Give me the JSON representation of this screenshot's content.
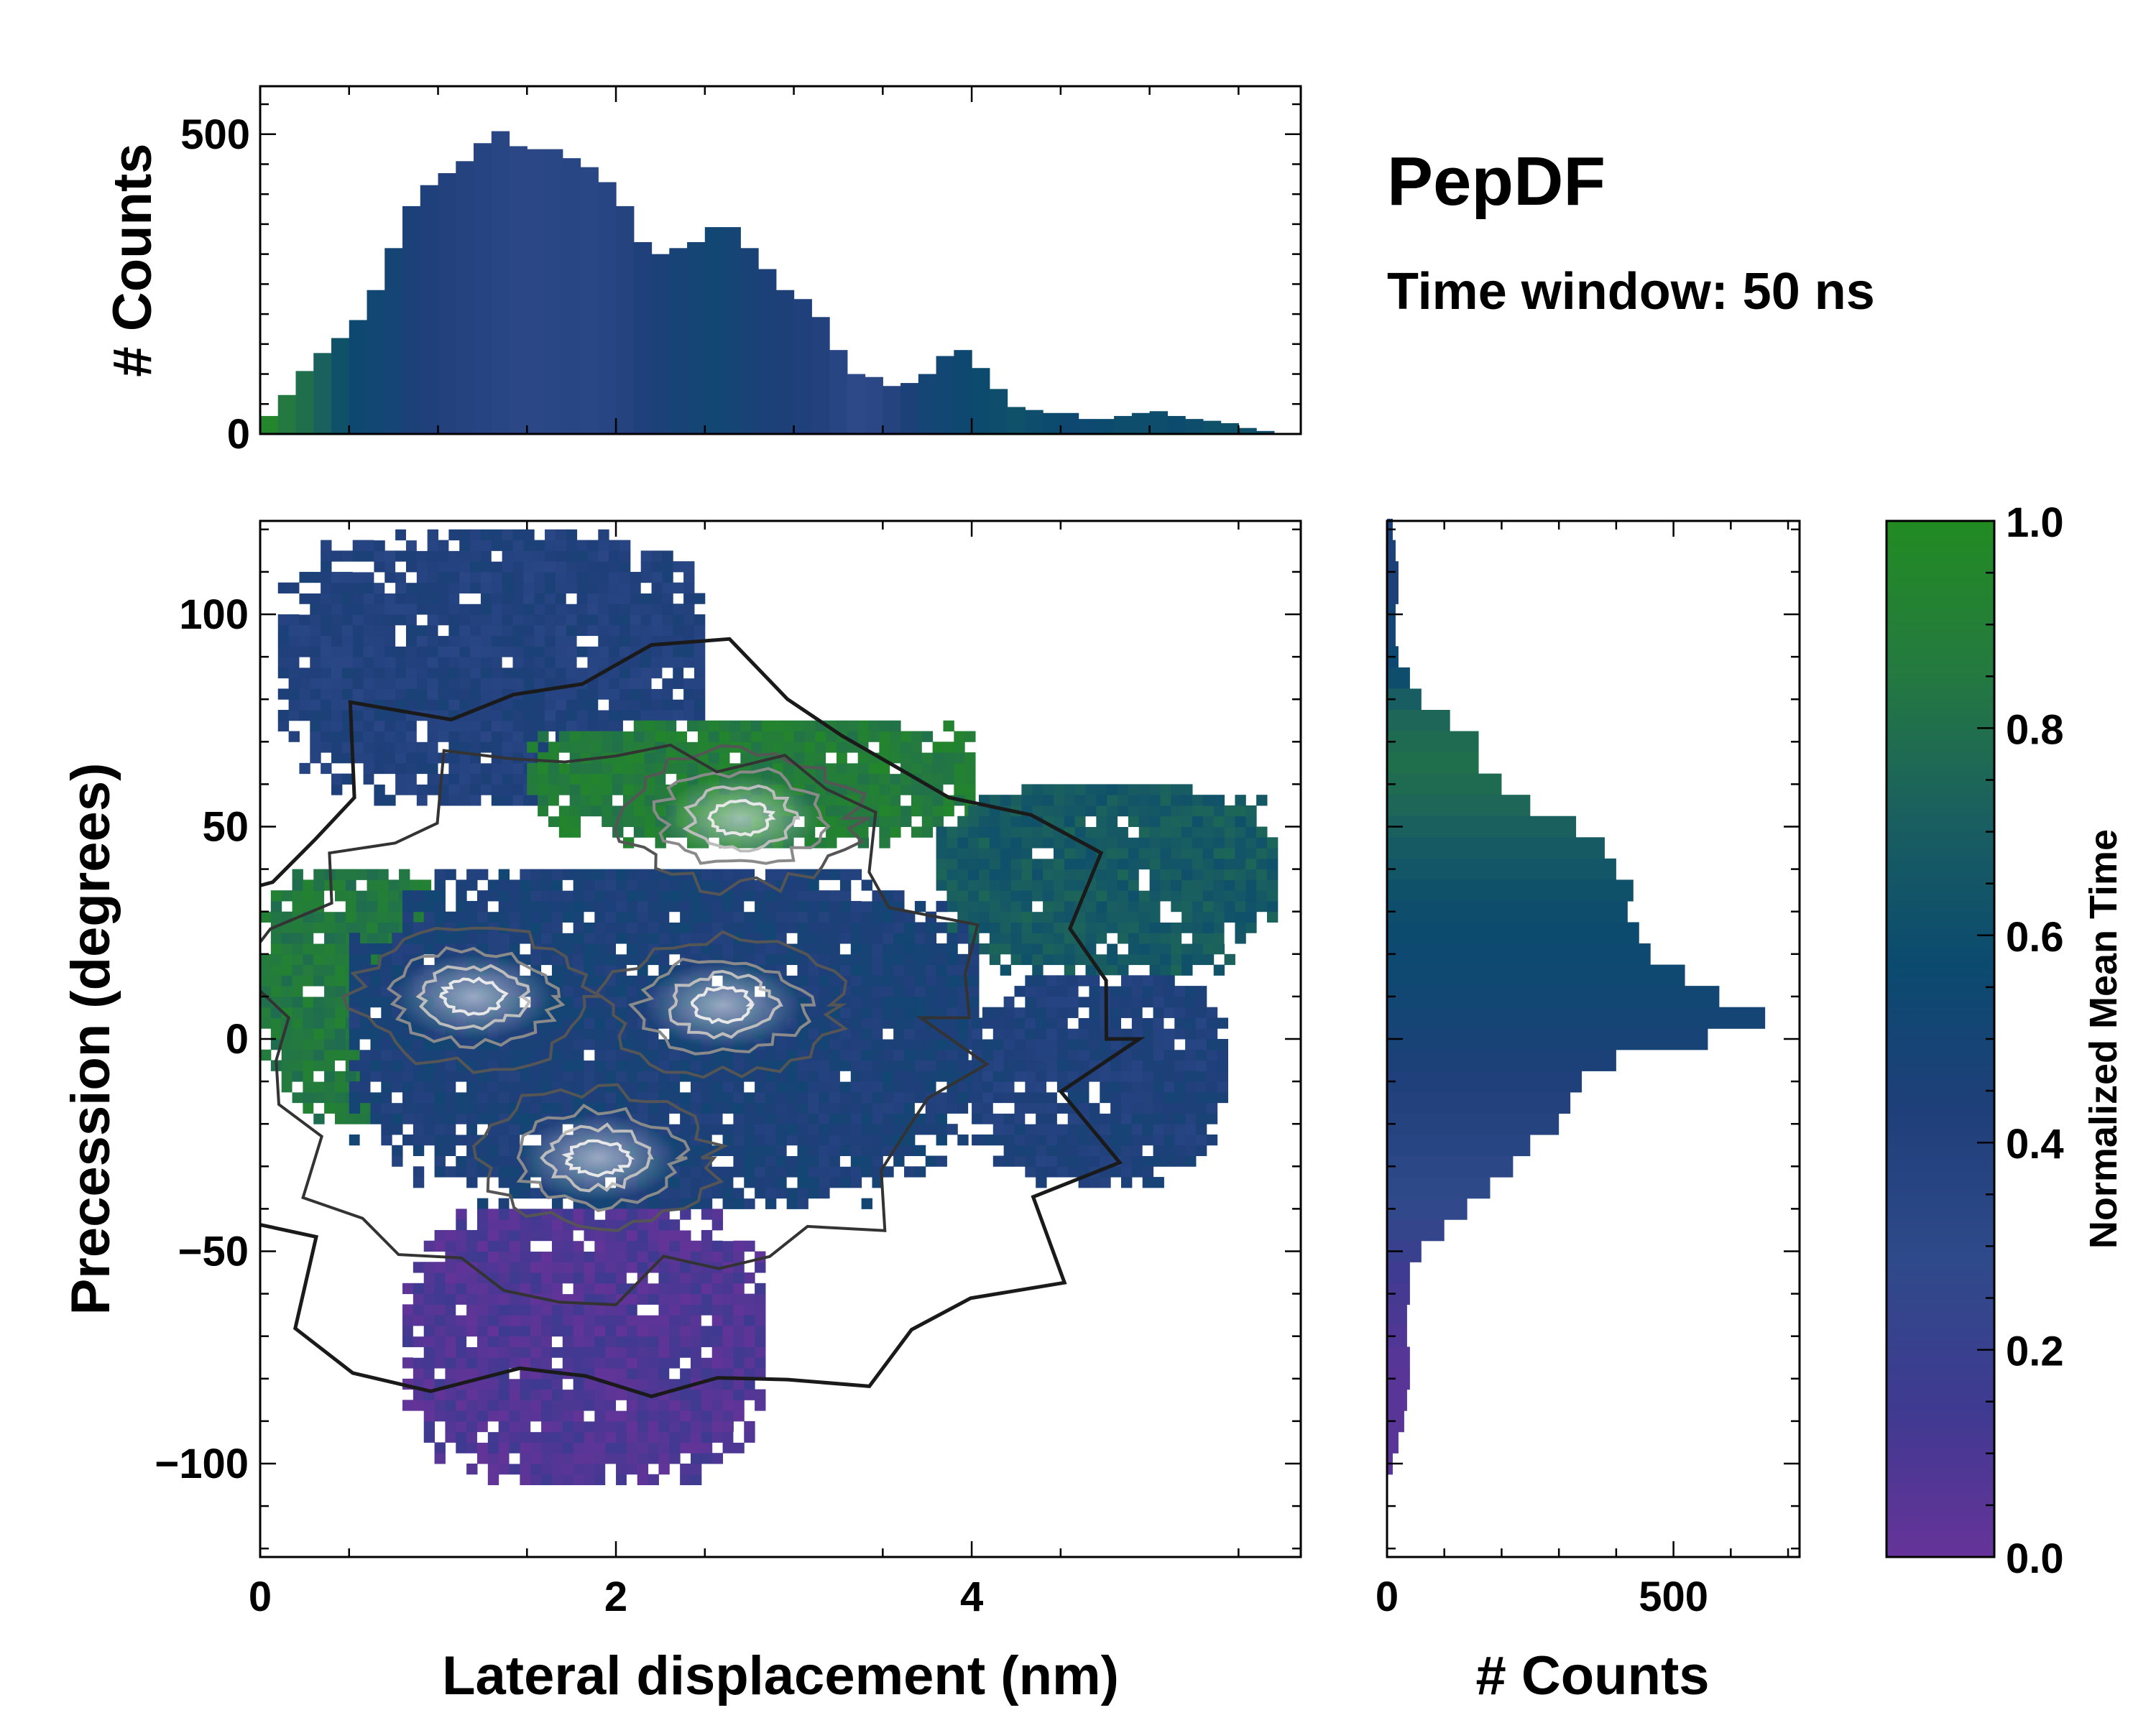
{
  "title": "PepDF",
  "subtitle": "Time window: 50 ns",
  "colors": {
    "colormap": [
      "#663399",
      "#3f3a91",
      "#2f4a8a",
      "#1f3f7a",
      "#0b4a6f",
      "#1a5f60",
      "#247a3f",
      "#228b22"
    ],
    "contour_dark": "#1a1a1a",
    "contour_light": "#e8e8e8",
    "frame": "#000000",
    "background": "#ffffff"
  },
  "chart_data": [
    {
      "id": "top-histogram",
      "type": "bar",
      "title": "",
      "xlabel": "",
      "ylabel": "# Counts",
      "xlim": [
        0,
        5.85
      ],
      "ylim": [
        0,
        580
      ],
      "ytick_labels": [
        "0",
        "500"
      ],
      "ytick_values": [
        0,
        500
      ],
      "bin_centers": [
        0.05,
        0.15,
        0.25,
        0.35,
        0.45,
        0.55,
        0.65,
        0.75,
        0.85,
        0.95,
        1.05,
        1.15,
        1.25,
        1.35,
        1.45,
        1.55,
        1.65,
        1.75,
        1.85,
        1.95,
        2.05,
        2.15,
        2.25,
        2.35,
        2.45,
        2.55,
        2.65,
        2.75,
        2.85,
        2.95,
        3.05,
        3.15,
        3.25,
        3.35,
        3.45,
        3.55,
        3.65,
        3.75,
        3.85,
        3.95,
        4.05,
        4.15,
        4.25,
        4.35,
        4.45,
        4.55,
        4.65,
        4.75,
        4.85,
        4.95,
        5.05,
        5.15,
        5.25,
        5.35,
        5.45,
        5.55,
        5.65,
        5.75
      ],
      "values": [
        30,
        65,
        105,
        135,
        160,
        190,
        240,
        310,
        380,
        415,
        435,
        455,
        485,
        505,
        480,
        475,
        475,
        460,
        445,
        420,
        380,
        320,
        300,
        310,
        320,
        345,
        345,
        310,
        275,
        240,
        225,
        195,
        140,
        100,
        95,
        80,
        85,
        100,
        130,
        140,
        110,
        75,
        45,
        40,
        35,
        35,
        25,
        25,
        30,
        35,
        38,
        30,
        25,
        22,
        18,
        10,
        5,
        0
      ],
      "mean_time": [
        0.95,
        0.85,
        0.8,
        0.72,
        0.62,
        0.55,
        0.52,
        0.5,
        0.45,
        0.42,
        0.4,
        0.38,
        0.36,
        0.34,
        0.32,
        0.32,
        0.33,
        0.34,
        0.33,
        0.35,
        0.38,
        0.42,
        0.45,
        0.48,
        0.5,
        0.52,
        0.5,
        0.47,
        0.45,
        0.44,
        0.42,
        0.4,
        0.35,
        0.3,
        0.32,
        0.38,
        0.45,
        0.5,
        0.52,
        0.55,
        0.58,
        0.6,
        0.62,
        0.6,
        0.58,
        0.55,
        0.56,
        0.58,
        0.6,
        0.6,
        0.6,
        0.58,
        0.6,
        0.62,
        0.62,
        0.62,
        0.6,
        0.6
      ]
    },
    {
      "id": "main-heatmap",
      "type": "heatmap",
      "title": "",
      "xlabel": "Lateral displacement (nm)",
      "ylabel": "Precession (degrees)",
      "xlim": [
        0,
        5.85
      ],
      "ylim": [
        -122,
        122
      ],
      "xtick_labels": [
        "0",
        "2",
        "4"
      ],
      "xtick_values": [
        0,
        2,
        4
      ],
      "ytick_labels": [
        "−100",
        "−50",
        "0",
        "50",
        "100"
      ],
      "ytick_values": [
        -100,
        -50,
        0,
        50,
        100
      ],
      "value_label": "Normalized Mean Time",
      "regions": [
        {
          "name": "upper-left-lobe",
          "x_range": [
            0.1,
            2.5
          ],
          "y_range": [
            55,
            118
          ],
          "mean_time": 0.4
        },
        {
          "name": "green-band",
          "x_range": [
            1.5,
            4.0
          ],
          "y_range": [
            45,
            75
          ],
          "mean_time": 0.88
        },
        {
          "name": "left-green-lobe",
          "x_range": [
            0.0,
            1.0
          ],
          "y_range": [
            -20,
            40
          ],
          "mean_time": 0.85
        },
        {
          "name": "right-teal-lobe",
          "x_range": [
            3.8,
            5.7
          ],
          "y_range": [
            15,
            60
          ],
          "mean_time": 0.68
        },
        {
          "name": "central-blue-core",
          "x_range": [
            0.5,
            4.0
          ],
          "y_range": [
            -40,
            40
          ],
          "mean_time": 0.45
        },
        {
          "name": "right-blue-lobe",
          "x_range": [
            4.0,
            5.4
          ],
          "y_range": [
            -35,
            15
          ],
          "mean_time": 0.42
        },
        {
          "name": "lower-purple-lobe",
          "x_range": [
            0.8,
            2.8
          ],
          "y_range": [
            -105,
            -40
          ],
          "mean_time": 0.08
        }
      ],
      "density_peaks": [
        {
          "x": 1.2,
          "y": 10
        },
        {
          "x": 2.6,
          "y": 8
        },
        {
          "x": 1.9,
          "y": -28
        },
        {
          "x": 2.7,
          "y": 52
        }
      ]
    },
    {
      "id": "right-histogram",
      "type": "bar",
      "orientation": "horizontal",
      "title": "",
      "xlabel": "# Counts",
      "ylabel": "",
      "xlim": [
        0,
        720
      ],
      "ylim": [
        -122,
        122
      ],
      "xtick_labels": [
        "0",
        "500"
      ],
      "xtick_values": [
        0,
        500
      ],
      "bin_centers": [
        120,
        115,
        110,
        105,
        100,
        95,
        90,
        85,
        80,
        75,
        70,
        65,
        60,
        55,
        50,
        45,
        40,
        35,
        30,
        25,
        20,
        15,
        10,
        5,
        0,
        -5,
        -10,
        -15,
        -20,
        -25,
        -30,
        -35,
        -40,
        -45,
        -50,
        -55,
        -60,
        -65,
        -70,
        -75,
        -80,
        -85,
        -90,
        -95,
        -100
      ],
      "values": [
        10,
        15,
        20,
        20,
        15,
        15,
        20,
        40,
        60,
        110,
        160,
        160,
        200,
        250,
        330,
        380,
        400,
        430,
        420,
        440,
        460,
        520,
        580,
        660,
        560,
        400,
        340,
        320,
        300,
        250,
        220,
        180,
        140,
        100,
        60,
        40,
        40,
        35,
        35,
        40,
        40,
        35,
        30,
        20,
        10
      ],
      "mean_time": [
        0.45,
        0.45,
        0.45,
        0.45,
        0.5,
        0.5,
        0.55,
        0.6,
        0.7,
        0.75,
        0.78,
        0.8,
        0.78,
        0.75,
        0.72,
        0.68,
        0.65,
        0.62,
        0.6,
        0.58,
        0.56,
        0.54,
        0.52,
        0.5,
        0.48,
        0.45,
        0.42,
        0.4,
        0.38,
        0.35,
        0.32,
        0.3,
        0.27,
        0.24,
        0.2,
        0.15,
        0.12,
        0.1,
        0.08,
        0.06,
        0.05,
        0.05,
        0.05,
        0.05,
        0.05
      ]
    },
    {
      "id": "colorbar",
      "type": "colorbar",
      "label": "Normalized Mean Time",
      "range": [
        0,
        1
      ],
      "tick_labels": [
        "0.0",
        "0.2",
        "0.4",
        "0.6",
        "0.8",
        "1.0"
      ],
      "tick_values": [
        0.0,
        0.2,
        0.4,
        0.6,
        0.8,
        1.0
      ]
    }
  ]
}
